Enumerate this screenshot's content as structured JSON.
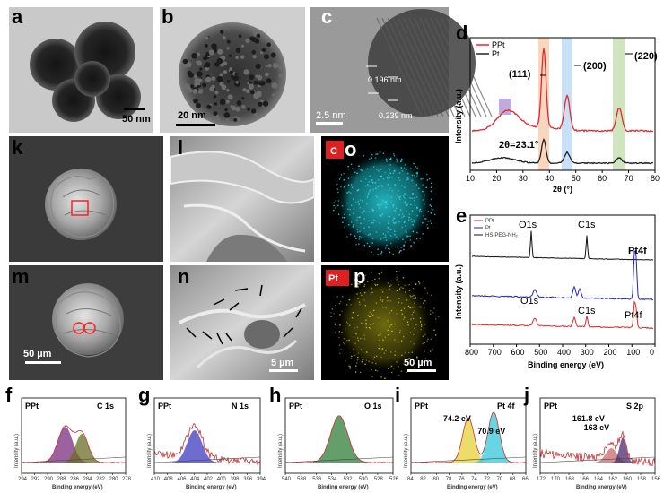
{
  "panel_labels": [
    "a",
    "b",
    "c",
    "d",
    "k",
    "l",
    "o",
    "e",
    "m",
    "n",
    "p",
    "f",
    "g",
    "h",
    "i",
    "j"
  ],
  "scale_bars": {
    "a": "50 nm",
    "b": "20 nm",
    "c": "2.5 nm",
    "m": "50 µm",
    "n": "5 µm",
    "p": "50 µm"
  },
  "lattice_labels": [
    "0.196 nm",
    "0.239 nm"
  ],
  "map_labels": {
    "o": "C",
    "p": "Pt"
  },
  "xrd": {
    "legend": [
      "PPt",
      "Pt"
    ],
    "peaks": [
      "(111)",
      "(200)",
      "(220)"
    ],
    "annotation": "2θ=23.1°",
    "ylabel": "Intensity (a.u.)",
    "xlabel": "2θ (°)",
    "xticks": [
      "10",
      "20",
      "30",
      "40",
      "50",
      "60",
      "70",
      "80"
    ],
    "colors": {
      "PPt": "#e8262a",
      "Pt": "#222222"
    }
  },
  "survey": {
    "legend": [
      "PPt",
      "Pt",
      "HS-PEG-NH₂"
    ],
    "labels": {
      "o1s_top": "O1s",
      "c1s_top": "C1s",
      "pt4f_top": "Pt4f",
      "o1s_bottom": "O1s",
      "c1s_bottom": "C1s",
      "pt4f_bottom": "Pt4f"
    },
    "ylabel": "Intensity (a.u.)",
    "xlabel": "Binding energy (eV)",
    "xticks": [
      "800",
      "700",
      "600",
      "500",
      "400",
      "300",
      "200",
      "100",
      "0"
    ],
    "colors": {
      "PPt": "#d42a2a",
      "Pt": "#2626b8",
      "HS": "#111111"
    }
  },
  "hr_panels": [
    {
      "id": "f",
      "sample": "PPt",
      "core": "C 1s",
      "xticks": [
        "294",
        "292",
        "290",
        "288",
        "286",
        "284",
        "282",
        "280",
        "278"
      ]
    },
    {
      "id": "g",
      "sample": "PPt",
      "core": "N 1s",
      "xticks": [
        "410",
        "408",
        "406",
        "404",
        "402",
        "400",
        "398",
        "396",
        "394"
      ]
    },
    {
      "id": "h",
      "sample": "PPt",
      "core": "O 1s",
      "xticks": [
        "540",
        "538",
        "536",
        "534",
        "532",
        "530",
        "528",
        "526"
      ]
    },
    {
      "id": "i",
      "sample": "PPt",
      "core": "Pt 4f",
      "peak1": "74.2 eV",
      "peak2": "70.9 eV",
      "xticks": [
        "84",
        "82",
        "80",
        "78",
        "76",
        "74",
        "72",
        "70",
        "68",
        "66"
      ]
    },
    {
      "id": "j",
      "sample": "PPt",
      "core": "S 2p",
      "peak1": "161.8 eV",
      "peak2": "163 eV",
      "xticks": [
        "172",
        "170",
        "168",
        "166",
        "164",
        "162",
        "160",
        "158",
        "156"
      ]
    }
  ],
  "hr_axis": {
    "ylabel": "Intensity (a.u.)",
    "xlabel": "Binding energy (eV)"
  }
}
